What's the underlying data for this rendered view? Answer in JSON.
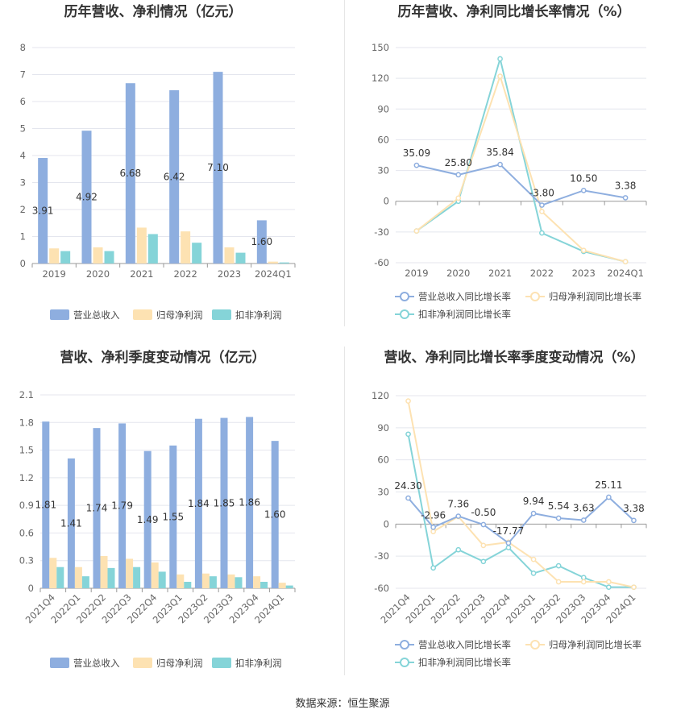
{
  "colors": {
    "revenue": "#8eaedf",
    "net_profit": "#fde2b2",
    "deducted_profit": "#85d4d8",
    "grid": "#e4e6ee",
    "axis": "#999999"
  },
  "source": "数据来源：恒生聚源",
  "chart_data": [
    {
      "type": "bar",
      "title": "历年营收、净利情况（亿元）",
      "categories": [
        "2019",
        "2020",
        "2021",
        "2022",
        "2023",
        "2024Q1"
      ],
      "ylim": [
        0,
        8
      ],
      "yticks": [
        "0",
        "1",
        "2",
        "3",
        "4",
        "5",
        "6",
        "7",
        "8"
      ],
      "grid": true,
      "legend_position": "bottom",
      "series": [
        {
          "name": "营业总收入",
          "values": [
            3.91,
            4.92,
            6.68,
            6.42,
            7.1,
            1.6
          ],
          "labels": [
            "3.91",
            "4.92",
            "6.68",
            "6.42",
            "7.10",
            "1.60"
          ]
        },
        {
          "name": "归母净利润",
          "values": [
            0.56,
            0.6,
            1.33,
            1.19,
            0.6,
            0.07
          ]
        },
        {
          "name": "扣非净利润",
          "values": [
            0.46,
            0.46,
            1.09,
            0.77,
            0.4,
            0.04
          ]
        }
      ]
    },
    {
      "type": "line",
      "title": "历年营收、净利同比增长率情况（%）",
      "categories": [
        "2019",
        "2020",
        "2021",
        "2022",
        "2023",
        "2024Q1"
      ],
      "ylim": [
        -60,
        150
      ],
      "yticks": [
        "-60",
        "-30",
        "0",
        "30",
        "60",
        "90",
        "120",
        "150"
      ],
      "grid": true,
      "legend_position": "bottom",
      "series": [
        {
          "name": "营业总收入同比增长率",
          "values": [
            35.09,
            25.8,
            35.84,
            -3.8,
            10.5,
            3.38
          ],
          "labels": [
            "35.09",
            "25.80",
            "35.84",
            "-3.80",
            "10.50",
            "3.38"
          ]
        },
        {
          "name": "归母净利润同比增长率",
          "values": [
            -29,
            3,
            122,
            -10,
            -48,
            -59
          ]
        },
        {
          "name": "扣非净利润同比增长率",
          "values": [
            -29,
            0,
            139,
            -31,
            -49,
            -59
          ]
        }
      ]
    },
    {
      "type": "bar",
      "title": "营收、净利季度变动情况（亿元）",
      "categories": [
        "2021Q4",
        "2022Q1",
        "2022Q2",
        "2022Q3",
        "2022Q4",
        "2023Q1",
        "2023Q2",
        "2023Q3",
        "2023Q4",
        "2024Q1"
      ],
      "ylim": [
        0,
        2.1
      ],
      "yticks": [
        "0",
        "0.3",
        "0.6",
        "0.9",
        "1.2",
        "1.5",
        "1.8",
        "2.1"
      ],
      "grid": true,
      "legend_position": "bottom",
      "series": [
        {
          "name": "营业总收入",
          "values": [
            1.81,
            1.41,
            1.74,
            1.79,
            1.49,
            1.55,
            1.84,
            1.85,
            1.86,
            1.6
          ],
          "labels": [
            "1.81",
            "1.41",
            "1.74",
            "1.79",
            "1.49",
            "1.55",
            "1.84",
            "1.85",
            "1.86",
            "1.60"
          ]
        },
        {
          "name": "归母净利润",
          "values": [
            0.33,
            0.23,
            0.35,
            0.32,
            0.28,
            0.15,
            0.16,
            0.15,
            0.13,
            0.06
          ]
        },
        {
          "name": "扣非净利润",
          "values": [
            0.23,
            0.13,
            0.22,
            0.23,
            0.18,
            0.07,
            0.13,
            0.12,
            0.07,
            0.03
          ]
        }
      ]
    },
    {
      "type": "line",
      "title": "营收、净利同比增长率季度变动情况（%）",
      "categories": [
        "2021Q4",
        "2022Q1",
        "2022Q2",
        "2022Q3",
        "2022Q4",
        "2023Q1",
        "2023Q2",
        "2023Q3",
        "2023Q4",
        "2024Q1"
      ],
      "ylim": [
        -60,
        120
      ],
      "yticks": [
        "-60",
        "-30",
        "0",
        "30",
        "60",
        "90",
        "120"
      ],
      "grid": true,
      "legend_position": "bottom",
      "series": [
        {
          "name": "营业总收入同比增长率",
          "values": [
            24.3,
            -2.96,
            7.36,
            -0.5,
            -17.77,
            9.94,
            5.54,
            3.63,
            25.11,
            3.38
          ],
          "labels": [
            "24.30",
            "-2.96",
            "7.36",
            "-0.50",
            "-17.77",
            "9.94",
            "5.54",
            "3.63",
            "25.11",
            "3.38"
          ]
        },
        {
          "name": "归母净利润同比增长率",
          "values": [
            115,
            -7,
            7,
            -20,
            -17,
            -33,
            -54,
            -54,
            -54,
            -59
          ]
        },
        {
          "name": "扣非净利润同比增长率",
          "values": [
            84,
            -41,
            -24,
            -35,
            -22,
            -46,
            -39,
            -50,
            -59,
            -59
          ]
        }
      ]
    }
  ]
}
